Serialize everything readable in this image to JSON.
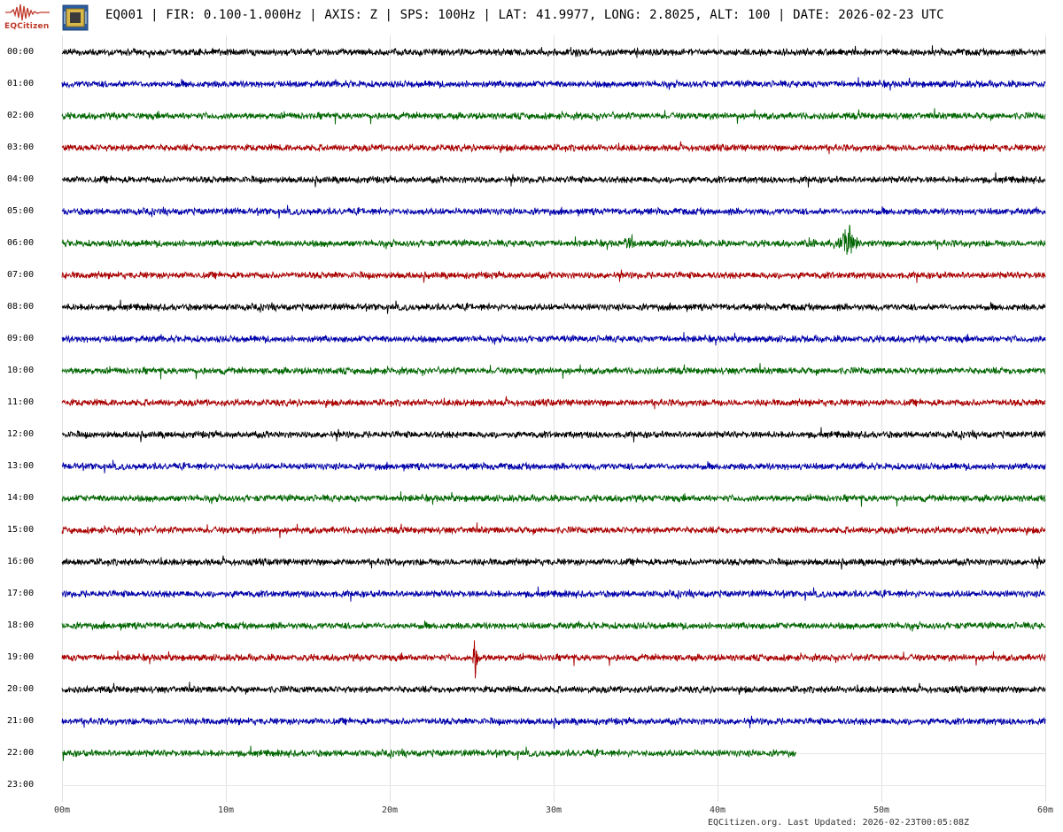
{
  "header": {
    "logo_text": "EQCitizen",
    "title": "EQ001 | FIR: 0.100-1.000Hz | AXIS: Z | SPS: 100Hz | LAT: 41.9977, LONG: 2.8025, ALT: 100 | DATE: 2026-02-23 UTC",
    "logo_icon": "seismograph-wave-icon",
    "device_icon": "sensor-chip-icon"
  },
  "footer": {
    "text": "EQCitizen.org. Last Updated: 2026-02-23T00:05:08Z"
  },
  "chart_data": {
    "type": "line",
    "title": "EQ001 | FIR: 0.100-1.000Hz | AXIS: Z | SPS: 100Hz | LAT: 41.9977, LONG: 2.8025, ALT: 100 | DATE: 2026-02-23 UTC",
    "xlabel": "",
    "ylabel": "",
    "x_ticks": [
      "00m",
      "10m",
      "20m",
      "30m",
      "40m",
      "50m",
      "60m"
    ],
    "x_tick_values": [
      0,
      10,
      20,
      30,
      40,
      50,
      60
    ],
    "xlim": [
      0,
      60
    ],
    "grid": true,
    "colors": [
      "#000000",
      "#0000aa",
      "#006600",
      "#aa0000"
    ],
    "rows": [
      {
        "label": "00:00",
        "color": "#000000",
        "end_minute": 60,
        "amplitude": 1,
        "events": []
      },
      {
        "label": "01:00",
        "color": "#0000aa",
        "end_minute": 60,
        "amplitude": 1,
        "events": []
      },
      {
        "label": "02:00",
        "color": "#006600",
        "end_minute": 60,
        "amplitude": 1,
        "events": []
      },
      {
        "label": "03:00",
        "color": "#aa0000",
        "end_minute": 60,
        "amplitude": 1,
        "events": []
      },
      {
        "label": "04:00",
        "color": "#000000",
        "end_minute": 60,
        "amplitude": 1,
        "events": []
      },
      {
        "label": "05:00",
        "color": "#0000aa",
        "end_minute": 60,
        "amplitude": 1,
        "events": []
      },
      {
        "label": "06:00",
        "color": "#006600",
        "end_minute": 60,
        "amplitude": 1,
        "events": [
          {
            "minute": 34.7,
            "amplitude": 20,
            "duration": 0.6
          },
          {
            "minute": 45.7,
            "amplitude": 10,
            "duration": 1.0
          },
          {
            "minute": 48.0,
            "amplitude": 26,
            "duration": 1.2
          }
        ]
      },
      {
        "label": "07:00",
        "color": "#aa0000",
        "end_minute": 60,
        "amplitude": 1,
        "events": []
      },
      {
        "label": "08:00",
        "color": "#000000",
        "end_minute": 60,
        "amplitude": 1,
        "events": []
      },
      {
        "label": "09:00",
        "color": "#0000aa",
        "end_minute": 60,
        "amplitude": 1,
        "events": []
      },
      {
        "label": "10:00",
        "color": "#006600",
        "end_minute": 60,
        "amplitude": 1,
        "events": []
      },
      {
        "label": "11:00",
        "color": "#aa0000",
        "end_minute": 60,
        "amplitude": 1,
        "events": []
      },
      {
        "label": "12:00",
        "color": "#000000",
        "end_minute": 60,
        "amplitude": 1,
        "events": []
      },
      {
        "label": "13:00",
        "color": "#0000aa",
        "end_minute": 60,
        "amplitude": 1,
        "events": []
      },
      {
        "label": "14:00",
        "color": "#006600",
        "end_minute": 60,
        "amplitude": 1,
        "events": []
      },
      {
        "label": "15:00",
        "color": "#aa0000",
        "end_minute": 60,
        "amplitude": 1,
        "events": []
      },
      {
        "label": "16:00",
        "color": "#000000",
        "end_minute": 60,
        "amplitude": 1,
        "events": []
      },
      {
        "label": "17:00",
        "color": "#0000aa",
        "end_minute": 60,
        "amplitude": 1,
        "events": []
      },
      {
        "label": "18:00",
        "color": "#006600",
        "end_minute": 60,
        "amplitude": 1,
        "events": []
      },
      {
        "label": "19:00",
        "color": "#aa0000",
        "end_minute": 60,
        "amplitude": 1,
        "events": [
          {
            "minute": 25.2,
            "amplitude": 32,
            "duration": 0.4
          }
        ]
      },
      {
        "label": "20:00",
        "color": "#000000",
        "end_minute": 60,
        "amplitude": 1,
        "events": []
      },
      {
        "label": "21:00",
        "color": "#0000aa",
        "end_minute": 60,
        "amplitude": 1,
        "events": []
      },
      {
        "label": "22:00",
        "color": "#006600",
        "end_minute": 44.8,
        "amplitude": 1,
        "events": []
      },
      {
        "label": "23:00",
        "color": "#000000",
        "end_minute": 0,
        "amplitude": 0,
        "events": []
      }
    ]
  }
}
